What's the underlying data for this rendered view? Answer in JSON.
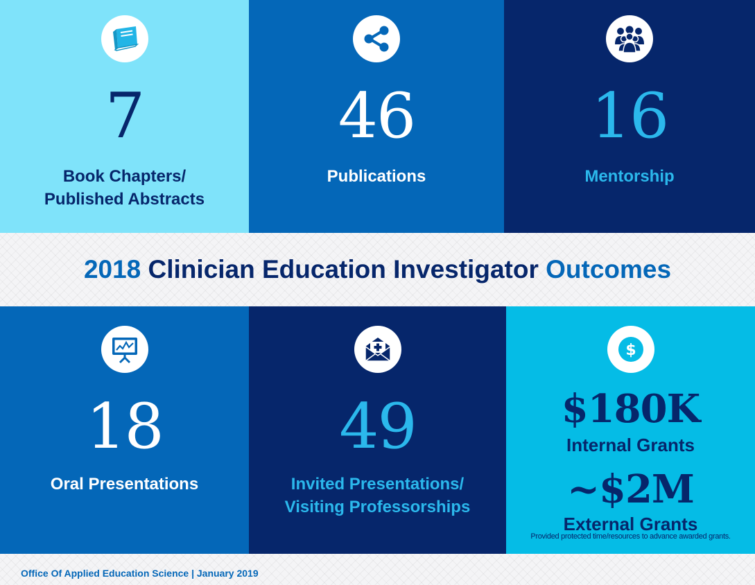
{
  "colors": {
    "light_cyan": "#7fe3fa",
    "mid_blue": "#0467b8",
    "navy": "#06266b",
    "bright_cyan": "#05bce6",
    "accent_cyan_text": "#2bb8ec"
  },
  "tiles": [
    {
      "icon": "book-icon",
      "value": "7",
      "label_line1": "Book Chapters/",
      "label_line2": "Published Abstracts"
    },
    {
      "icon": "share-icon",
      "value": "46",
      "label_line1": "Publications",
      "label_line2": ""
    },
    {
      "icon": "group-icon",
      "value": "16",
      "label_line1": "Mentorship",
      "label_line2": ""
    },
    {
      "icon": "presentation-board-icon",
      "value": "18",
      "label_line1": "Oral Presentations",
      "label_line2": ""
    },
    {
      "icon": "medical-envelope-icon",
      "value": "49",
      "label_line1": "Invited Presentations/",
      "label_line2": "Visiting Professorships"
    }
  ],
  "grants": {
    "icon": "dollar-icon",
    "internal_value": "$180K",
    "internal_label": "Internal Grants",
    "external_value": "~$2M",
    "external_label": "External Grants",
    "note": "Provided protected time/resources to advance awarded grants."
  },
  "band": {
    "year": "2018",
    "middle": "Clinician Education Investigator",
    "end": "Outcomes"
  },
  "footer": {
    "text": "Office Of Applied Education Science | January 2019"
  }
}
